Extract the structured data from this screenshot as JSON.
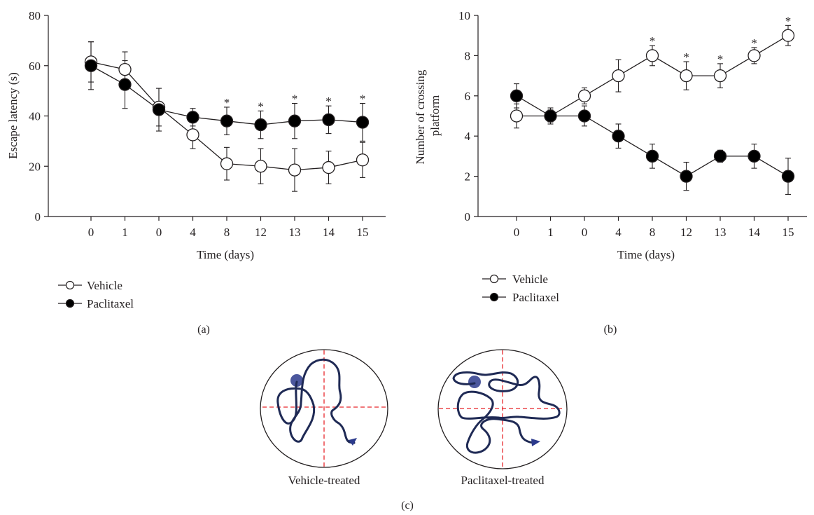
{
  "chart_data": [
    {
      "type": "line",
      "panel_label": "(a)",
      "ylabel": "Escape latency (s)",
      "xlabel": "Time (days)",
      "categories": [
        "0",
        "1",
        "0",
        "4",
        "8",
        "12",
        "13",
        "14",
        "15"
      ],
      "ylim": [
        0,
        80
      ],
      "yticks": [
        0,
        20,
        40,
        60,
        80
      ],
      "series": [
        {
          "name": "Vehicle",
          "marker": "open-circle",
          "values": [
            61.5,
            58.5,
            43.5,
            32.5,
            21,
            20,
            18.5,
            19.5,
            22.5
          ],
          "errors": [
            8,
            7,
            7.5,
            5.5,
            6.5,
            7,
            8.5,
            6.5,
            7
          ]
        },
        {
          "name": "Paclitaxel",
          "marker": "filled-circle",
          "values": [
            60,
            52.5,
            42.5,
            39.5,
            38,
            36.5,
            38,
            38.5,
            37.5
          ],
          "errors": [
            9.5,
            9.5,
            8.5,
            3.5,
            5.5,
            5.5,
            7,
            5.5,
            7.5
          ]
        }
      ],
      "significance": [
        "",
        "",
        "",
        "",
        "*",
        "*",
        "*",
        "*",
        "*"
      ],
      "legend": "bottom-left",
      "grid": false
    },
    {
      "type": "line",
      "panel_label": "(b)",
      "ylabel": "Number of crossing platform",
      "ylabel_lines": [
        "Number of crossing",
        "platform"
      ],
      "xlabel": "Time (days)",
      "categories": [
        "0",
        "1",
        "0",
        "4",
        "8",
        "12",
        "13",
        "14",
        "15"
      ],
      "ylim": [
        0,
        10
      ],
      "yticks": [
        0,
        2,
        4,
        6,
        8,
        10
      ],
      "series": [
        {
          "name": "Vehicle",
          "marker": "open-circle",
          "values": [
            5,
            5,
            6,
            7,
            8,
            7,
            7,
            8,
            9
          ],
          "errors": [
            0.6,
            0.3,
            0.4,
            0.8,
            0.5,
            0.7,
            0.6,
            0.4,
            0.5
          ]
        },
        {
          "name": "Paclitaxel",
          "marker": "filled-circle",
          "values": [
            6,
            5,
            5,
            4,
            3,
            2,
            3,
            3,
            2
          ],
          "errors": [
            0.6,
            0.4,
            0.5,
            0.6,
            0.6,
            0.7,
            0.3,
            0.6,
            0.9
          ]
        }
      ],
      "significance": [
        "",
        "",
        "",
        "",
        "*",
        "*",
        "*",
        "*",
        "*"
      ],
      "legend": "bottom-left",
      "grid": false
    }
  ],
  "panel_c": {
    "label": "(c)",
    "pools": [
      {
        "caption": "Vehicle-treated"
      },
      {
        "caption": "Paclitaxel-treated"
      }
    ],
    "colors": {
      "path": "#1f2a55",
      "platform": "#2b3a8c",
      "crosshair": "#e8262b",
      "arrow": "#2b3a8c"
    }
  },
  "colors": {
    "axis": "#231f20",
    "line": "#231f20",
    "marker_fill": "#000000",
    "marker_open": "#ffffff"
  }
}
